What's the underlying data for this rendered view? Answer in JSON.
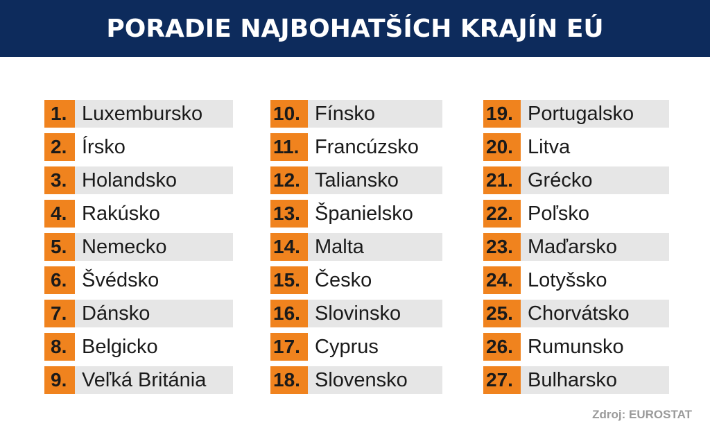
{
  "header": {
    "title": "PORADIE NAJBOHATŠÍCH KRAJÍN EÚ"
  },
  "colors": {
    "header_bg": "#0d2b5c",
    "rank_bg": "#f0831e",
    "row_bg": "#e6e6e6",
    "source_text": "#9a9a9a"
  },
  "rankings": [
    {
      "rank": "1.",
      "country": "Luxembursko"
    },
    {
      "rank": "2.",
      "country": "Írsko"
    },
    {
      "rank": "3.",
      "country": "Holandsko"
    },
    {
      "rank": "4.",
      "country": "Rakúsko"
    },
    {
      "rank": "5.",
      "country": "Nemecko"
    },
    {
      "rank": "6.",
      "country": "Švédsko"
    },
    {
      "rank": "7.",
      "country": "Dánsko"
    },
    {
      "rank": "8.",
      "country": "Belgicko"
    },
    {
      "rank": "9.",
      "country": "Veľká Británia"
    },
    {
      "rank": "10.",
      "country": "Fínsko"
    },
    {
      "rank": "11.",
      "country": "Francúzsko"
    },
    {
      "rank": "12.",
      "country": "Taliansko"
    },
    {
      "rank": "13.",
      "country": "Španielsko"
    },
    {
      "rank": "14.",
      "country": "Malta"
    },
    {
      "rank": "15.",
      "country": "Česko"
    },
    {
      "rank": "16.",
      "country": "Slovinsko"
    },
    {
      "rank": "17.",
      "country": "Cyprus"
    },
    {
      "rank": "18.",
      "country": "Slovensko"
    },
    {
      "rank": "19.",
      "country": "Portugalsko"
    },
    {
      "rank": "20.",
      "country": "Litva"
    },
    {
      "rank": "21.",
      "country": "Grécko"
    },
    {
      "rank": "22.",
      "country": "Poľsko"
    },
    {
      "rank": "23.",
      "country": "Maďarsko"
    },
    {
      "rank": "24.",
      "country": "Lotyšsko"
    },
    {
      "rank": "25.",
      "country": "Chorvátsko"
    },
    {
      "rank": "26.",
      "country": "Rumunsko"
    },
    {
      "rank": "27.",
      "country": "Bulharsko"
    }
  ],
  "source": "Zdroj: EUROSTAT"
}
